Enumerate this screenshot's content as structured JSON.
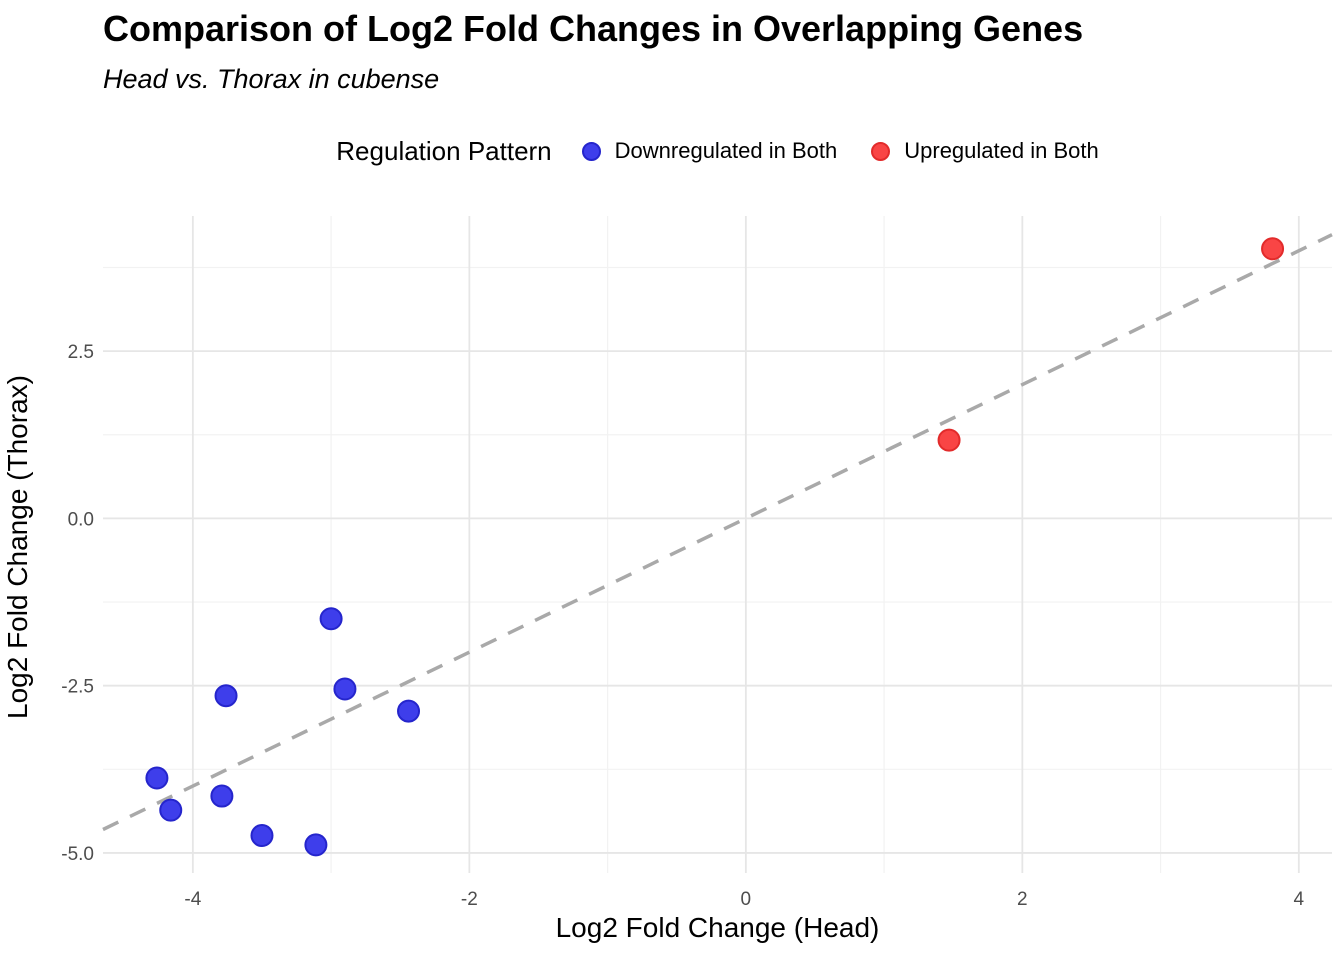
{
  "header": {
    "title": "Comparison of Log2 Fold Changes in Overlapping Genes",
    "subtitle": "Head vs. Thorax in cubense"
  },
  "legend": {
    "title": "Regulation Pattern",
    "items": [
      {
        "label": "Downregulated in Both",
        "color": "#3E3EEB",
        "border": "#2525CC"
      },
      {
        "label": "Upregulated in Both",
        "color": "#F94545",
        "border": "#E22B2B"
      }
    ]
  },
  "chart_data": {
    "type": "scatter",
    "title": "Comparison of Log2 Fold Changes in Overlapping Genes",
    "subtitle": "Head vs. Thorax in cubense",
    "xlabel": "Log2 Fold Change (Head)",
    "ylabel": "Log2 Fold Change (Thorax)",
    "xlim": [
      -4.65,
      4.24
    ],
    "ylim": [
      -5.3,
      4.52
    ],
    "xticks": {
      "values": [
        -4,
        -2,
        0,
        2,
        4
      ],
      "labels": [
        "-4",
        "-2",
        "0",
        "2",
        "4"
      ]
    },
    "yticks": {
      "values": [
        -5.0,
        -2.5,
        0.0,
        2.5
      ],
      "labels": [
        "-5.0",
        "-2.5",
        "0.0",
        "2.5"
      ]
    },
    "minor_xticks": [
      -3,
      -1,
      1,
      3
    ],
    "minor_yticks": [
      -3.75,
      -1.25,
      1.25,
      3.75
    ],
    "grid": true,
    "legend_position": "top",
    "legend_title": "Regulation Pattern",
    "reference_line": {
      "type": "identity y=x",
      "style": "dashed",
      "color": "#A9A9A9"
    },
    "series": [
      {
        "name": "Downregulated in Both",
        "color": "#3E3EEB",
        "border_color": "#2525CC",
        "points": [
          [
            -3.0,
            -1.5
          ],
          [
            -3.76,
            -2.65
          ],
          [
            -2.9,
            -2.55
          ],
          [
            -2.44,
            -2.88
          ],
          [
            -4.26,
            -3.88
          ],
          [
            -3.79,
            -4.15
          ],
          [
            -4.16,
            -4.36
          ],
          [
            -3.5,
            -4.74
          ],
          [
            -3.11,
            -4.88
          ]
        ]
      },
      {
        "name": "Upregulated in Both",
        "color": "#F94545",
        "border_color": "#E22B2B",
        "points": [
          [
            1.47,
            1.17
          ],
          [
            3.81,
            4.03
          ]
        ]
      }
    ],
    "colors": {
      "grid_major": "#E6E6E6",
      "grid_minor": "#F2F2F2",
      "tick_text": "#4D4D4D",
      "reference_line": "#A9A9A9",
      "background": "#FFFFFF"
    }
  }
}
